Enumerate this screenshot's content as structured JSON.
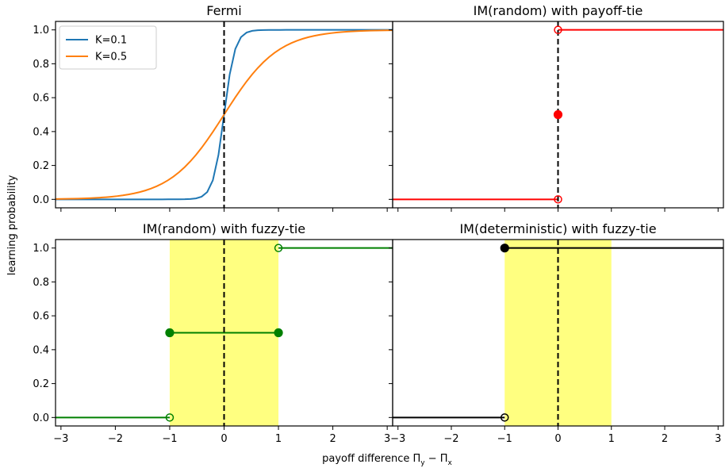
{
  "figure": {
    "ylabel": "learning probability",
    "xlabel_parts": [
      "payoff difference Π",
      "y",
      " − Π",
      "x"
    ]
  },
  "chart_data": [
    {
      "type": "line",
      "title": "Fermi",
      "xlim": [
        -3.1,
        3.1
      ],
      "ylim": [
        -0.05,
        1.05
      ],
      "xticks": [],
      "yticks": [
        0.0,
        0.2,
        0.4,
        0.6,
        0.8,
        1.0
      ],
      "ytick_labels": [
        "0.0",
        "0.2",
        "0.4",
        "0.6",
        "0.8",
        "1.0"
      ],
      "vline_x": 0,
      "legend": {
        "position": "top-left"
      },
      "series": [
        {
          "name": "K=0.1",
          "function": "fermi",
          "K": 0.1,
          "color": "#1f77b4",
          "x_range": [
            -3.1,
            3.1
          ],
          "samples": 61
        },
        {
          "name": "K=0.5",
          "function": "fermi",
          "K": 0.5,
          "color": "#ff7f0e",
          "x_range": [
            -3.1,
            3.1
          ],
          "samples": 61
        }
      ]
    },
    {
      "type": "line",
      "title": "IM(random) with payoff-tie",
      "xlim": [
        -3.1,
        3.1
      ],
      "ylim": [
        -0.05,
        1.05
      ],
      "xticks": [],
      "yticks": [],
      "vline_x": 0,
      "color": "#ff0000",
      "segments": [
        {
          "x": [
            -3.1,
            0
          ],
          "y": [
            0,
            0
          ]
        },
        {
          "x": [
            0,
            3.1
          ],
          "y": [
            1,
            1
          ]
        }
      ],
      "points_filled": [
        {
          "x": 0,
          "y": 0.5
        }
      ],
      "points_open": [
        {
          "x": 0,
          "y": 0
        },
        {
          "x": 0,
          "y": 1
        }
      ]
    },
    {
      "type": "line",
      "title": "IM(random) with fuzzy-tie",
      "xlim": [
        -3.1,
        3.1
      ],
      "ylim": [
        -0.05,
        1.05
      ],
      "xticks": [
        -3,
        -2,
        -1,
        0,
        1,
        2,
        3
      ],
      "xtick_labels": [
        "−3",
        "−2",
        "−1",
        "0",
        "1",
        "2",
        "3"
      ],
      "yticks": [
        0.0,
        0.2,
        0.4,
        0.6,
        0.8,
        1.0
      ],
      "ytick_labels": [
        "0.0",
        "0.2",
        "0.4",
        "0.6",
        "0.8",
        "1.0"
      ],
      "vline_x": 0,
      "shaded_band": {
        "x": [
          -1,
          1
        ],
        "color": "#ffff80"
      },
      "color": "#008000",
      "segments": [
        {
          "x": [
            -3.1,
            -1
          ],
          "y": [
            0,
            0
          ]
        },
        {
          "x": [
            -1,
            1
          ],
          "y": [
            0.5,
            0.5
          ]
        },
        {
          "x": [
            1,
            3.1
          ],
          "y": [
            1,
            1
          ]
        }
      ],
      "points_filled": [
        {
          "x": -1,
          "y": 0.5
        },
        {
          "x": 1,
          "y": 0.5
        }
      ],
      "points_open": [
        {
          "x": -1,
          "y": 0
        },
        {
          "x": 1,
          "y": 1
        }
      ]
    },
    {
      "type": "line",
      "title": "IM(deterministic) with fuzzy-tie",
      "xlim": [
        -3.1,
        3.1
      ],
      "ylim": [
        -0.05,
        1.05
      ],
      "xticks": [
        -3,
        -2,
        -1,
        0,
        1,
        2,
        3
      ],
      "xtick_labels": [
        "−3",
        "−2",
        "−1",
        "0",
        "1",
        "2",
        "3"
      ],
      "yticks": [],
      "vline_x": 0,
      "shaded_band": {
        "x": [
          -1,
          1
        ],
        "color": "#ffff80"
      },
      "color": "#000000",
      "segments": [
        {
          "x": [
            -3.1,
            -1
          ],
          "y": [
            0,
            0
          ]
        },
        {
          "x": [
            -1,
            3.1
          ],
          "y": [
            1,
            1
          ]
        }
      ],
      "points_filled": [
        {
          "x": -1,
          "y": 1
        }
      ],
      "points_open": [
        {
          "x": -1,
          "y": 0
        }
      ]
    }
  ]
}
